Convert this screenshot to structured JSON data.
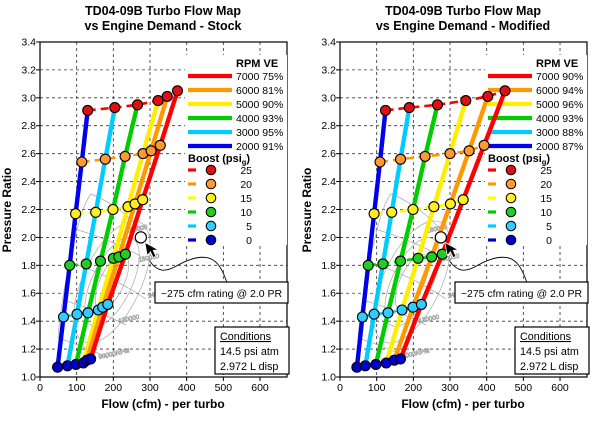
{
  "chart_data": [
    {
      "type": "line",
      "title_line1": "TD04-09B Turbo Flow Map",
      "title_line2": "vs Engine Demand - Stock",
      "xlabel": "Flow (cfm) - per turbo",
      "ylabel": "Pressure Ratio",
      "x_ticks": [
        0,
        100,
        200,
        300,
        400,
        500,
        600
      ],
      "y_ticks": [
        3.4,
        3.2,
        3.0,
        2.8,
        2.6,
        2.4,
        2.2,
        2.0,
        1.8,
        1.6,
        1.4,
        1.2,
        1.0
      ],
      "xlim": [
        0,
        674
      ],
      "ylim": [
        1.0,
        3.4
      ],
      "grid": true,
      "legend": {
        "rpm_header": "RPM  VE",
        "boost_header_pre": "Boost (psi",
        "boost_header_sub": "g",
        "boost_header_post": ")"
      },
      "series": [
        {
          "rpm": "2000",
          "ve": "91%",
          "color": "#0000EE",
          "points": [
            [
              48,
              1.07
            ],
            [
              64,
              1.43
            ],
            [
              81,
              1.8
            ],
            [
              97,
              2.17
            ],
            [
              114,
              2.54
            ],
            [
              130,
              2.91
            ]
          ]
        },
        {
          "rpm": "3000",
          "ve": "95%",
          "color": "#00CCFF",
          "points": [
            [
              75,
              1.08
            ],
            [
              101,
              1.45
            ],
            [
              126,
              1.81
            ],
            [
              152,
              2.18
            ],
            [
              178,
              2.56
            ],
            [
              204,
              2.93
            ]
          ]
        },
        {
          "rpm": "4000",
          "ve": "93%",
          "color": "#00CC00",
          "points": [
            [
              98,
              1.09
            ],
            [
              131,
              1.46
            ],
            [
              165,
              1.83
            ],
            [
              199,
              2.2
            ],
            [
              232,
              2.58
            ],
            [
              266,
              2.95
            ]
          ]
        },
        {
          "rpm": "5000",
          "ve": "90%",
          "color": "#FFEE00",
          "points": [
            [
              118,
              1.1
            ],
            [
              159,
              1.48
            ],
            [
              200,
              1.85
            ],
            [
              240,
              2.22
            ],
            [
              281,
              2.6
            ],
            [
              322,
              2.98
            ]
          ]
        },
        {
          "rpm": "6000",
          "ve": "81%",
          "color": "#FF9900",
          "points": [
            [
              128,
              1.12
            ],
            [
              171,
              1.5
            ],
            [
              215,
              1.86
            ],
            [
              259,
              2.24
            ],
            [
              303,
              2.62
            ],
            [
              347,
              3.01
            ]
          ]
        },
        {
          "rpm": "7000",
          "ve": "75%",
          "color": "#FF0000",
          "points": [
            [
              138,
              1.13
            ],
            [
              185,
              1.52
            ],
            [
              233,
              1.88
            ],
            [
              280,
              2.27
            ],
            [
              328,
              2.66
            ],
            [
              375,
              3.05
            ]
          ]
        }
      ],
      "boost_levels": [
        {
          "psi": "0",
          "color": "#0000CC",
          "dot": "#0000CC"
        },
        {
          "psi": "5",
          "color": "#00CCFF",
          "dot": "#33CCFF"
        },
        {
          "psi": "10",
          "color": "#00CC00",
          "dot": "#22CC22"
        },
        {
          "psi": "15",
          "color": "#FFFF00",
          "dot": "#FFEE22"
        },
        {
          "psi": "20",
          "color": "#FF9900",
          "dot": "#FF9933"
        },
        {
          "psi": "25",
          "color": "#FF0000",
          "dot": "#DD1111"
        }
      ],
      "annotation": {
        "label": "~275 cfm rating @ 2.0 PR",
        "flow": 275,
        "pr": 2.0
      },
      "conditions": {
        "title": "Conditions",
        "lines": [
          "14.5 psi atm",
          "2.972 L disp"
        ]
      },
      "compressor_map_labels": [
        "180000",
        "160000",
        "140000",
        "120000",
        "90000RPM"
      ]
    },
    {
      "type": "line",
      "title_line1": "TD04-09B Turbo Flow Map",
      "title_line2": "vs Engine Demand - Modified",
      "xlabel": "Flow (cfm) - per turbo",
      "ylabel": "Pressure Ratio",
      "x_ticks": [
        0,
        100,
        200,
        300,
        400,
        500,
        600
      ],
      "y_ticks": [
        3.4,
        3.2,
        3.0,
        2.8,
        2.6,
        2.4,
        2.2,
        2.0,
        1.8,
        1.6,
        1.4,
        1.2,
        1.0
      ],
      "xlim": [
        0,
        674
      ],
      "ylim": [
        1.0,
        3.4
      ],
      "grid": true,
      "legend": {
        "rpm_header": "RPM  VE",
        "boost_header_pre": "Boost (psi",
        "boost_header_sub": "g",
        "boost_header_post": ")"
      },
      "series": [
        {
          "rpm": "2000",
          "ve": "87%",
          "color": "#0000EE",
          "points": [
            [
              46,
              1.07
            ],
            [
              61,
              1.43
            ],
            [
              77,
              1.8
            ],
            [
              93,
              2.17
            ],
            [
              109,
              2.54
            ],
            [
              124,
              2.91
            ]
          ]
        },
        {
          "rpm": "3000",
          "ve": "88%",
          "color": "#00CCFF",
          "points": [
            [
              69,
              1.08
            ],
            [
              93,
              1.45
            ],
            [
              117,
              1.81
            ],
            [
              141,
              2.18
            ],
            [
              165,
              2.56
            ],
            [
              189,
              2.93
            ]
          ]
        },
        {
          "rpm": "4000",
          "ve": "93%",
          "color": "#00CC00",
          "points": [
            [
              98,
              1.09
            ],
            [
              131,
              1.46
            ],
            [
              165,
              1.83
            ],
            [
              199,
              2.2
            ],
            [
              232,
              2.58
            ],
            [
              266,
              2.95
            ]
          ]
        },
        {
          "rpm": "5000",
          "ve": "96%",
          "color": "#FFEE00",
          "points": [
            [
              126,
              1.1
            ],
            [
              169,
              1.48
            ],
            [
              213,
              1.85
            ],
            [
              256,
              2.22
            ],
            [
              300,
              2.6
            ],
            [
              343,
              2.98
            ]
          ]
        },
        {
          "rpm": "6000",
          "ve": "94%",
          "color": "#FF9900",
          "points": [
            [
              148,
              1.12
            ],
            [
              199,
              1.5
            ],
            [
              250,
              1.86
            ],
            [
              301,
              2.24
            ],
            [
              352,
              2.62
            ],
            [
              403,
              3.01
            ]
          ]
        },
        {
          "rpm": "7000",
          "ve": "90%",
          "color": "#FF0000",
          "points": [
            [
              165,
              1.13
            ],
            [
              222,
              1.52
            ],
            [
              279,
              1.88
            ],
            [
              336,
              2.27
            ],
            [
              393,
              2.66
            ],
            [
              450,
              3.05
            ]
          ]
        }
      ],
      "boost_levels": [
        {
          "psi": "0",
          "color": "#0000CC",
          "dot": "#0000CC"
        },
        {
          "psi": "5",
          "color": "#00CCFF",
          "dot": "#33CCFF"
        },
        {
          "psi": "10",
          "color": "#00CC00",
          "dot": "#22CC22"
        },
        {
          "psi": "15",
          "color": "#FFFF00",
          "dot": "#FFEE22"
        },
        {
          "psi": "20",
          "color": "#FF9900",
          "dot": "#FF9933"
        },
        {
          "psi": "25",
          "color": "#FF0000",
          "dot": "#DD1111"
        }
      ],
      "annotation": {
        "label": "~275 cfm rating @ 2.0 PR",
        "flow": 275,
        "pr": 2.0
      },
      "conditions": {
        "title": "Conditions",
        "lines": [
          "14.5 psi atm",
          "2.972 L disp"
        ]
      },
      "compressor_map_labels": [
        "180000",
        "160000",
        "140000",
        "120000",
        "90000RPM"
      ]
    }
  ]
}
